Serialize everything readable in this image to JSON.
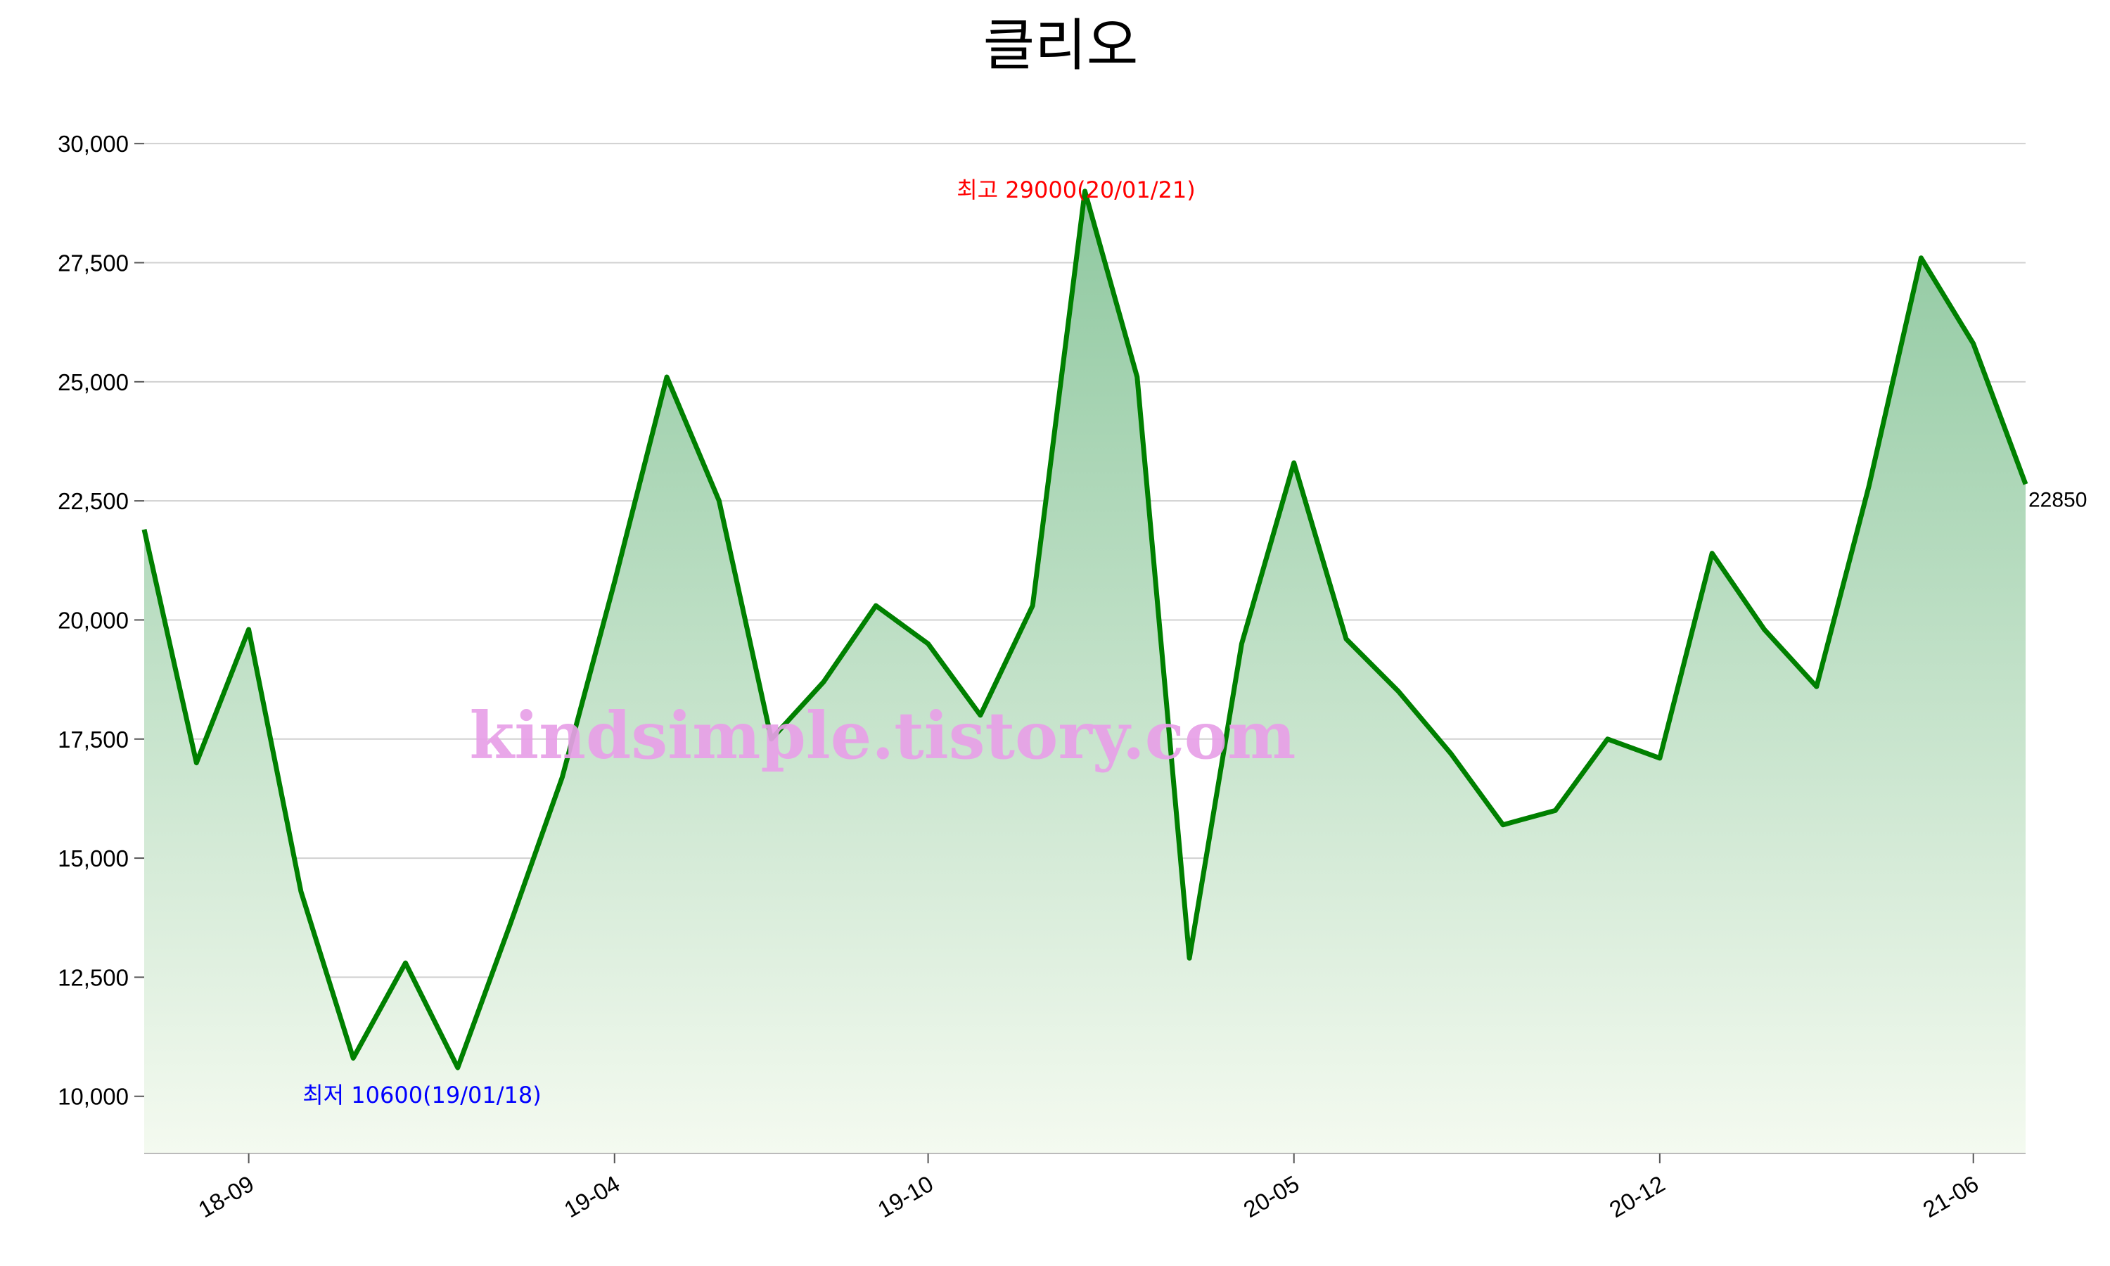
{
  "chart_data": {
    "type": "area",
    "title": "클리오",
    "xlabel": "",
    "ylabel": "",
    "ylim": [
      8800,
      30800
    ],
    "yticks": [
      10000,
      12500,
      15000,
      17500,
      20000,
      22500,
      25000,
      27500,
      30000
    ],
    "ytick_labels": [
      "10,000",
      "12,500",
      "15,000",
      "17,500",
      "20,000",
      "22,500",
      "25,000",
      "27,500",
      "30,000"
    ],
    "xticks": [
      "18-09",
      "19-04",
      "19-10",
      "20-05",
      "20-12",
      "21-06"
    ],
    "grid": "horizontal",
    "colors": {
      "line": "#008000",
      "fill_top": "#8fc8a0",
      "fill_bottom": "#f4faf0",
      "max": "#ff0000",
      "min": "#0000ff"
    },
    "series": [
      {
        "x": [
          "18-07",
          "18-08",
          "18-09",
          "18-10",
          "18-11",
          "18-12",
          "19-01",
          "19-02",
          "19-03",
          "19-04",
          "19-05",
          "19-06",
          "19-07",
          "19-08",
          "19-09",
          "19-10",
          "19-11",
          "19-12",
          "20-01",
          "20-02",
          "20-03",
          "20-04",
          "20-05",
          "20-06",
          "20-07",
          "20-08",
          "20-09",
          "20-10",
          "20-11",
          "20-12",
          "21-01",
          "21-02",
          "21-03",
          "21-04",
          "21-05",
          "21-06",
          "21-07"
        ],
        "values": [
          21900,
          17000,
          19800,
          14300,
          10800,
          12800,
          10600,
          13600,
          16700,
          20800,
          25100,
          22500,
          17500,
          18700,
          20300,
          19500,
          18000,
          20300,
          29000,
          25100,
          12900,
          19500,
          23300,
          19600,
          18500,
          17200,
          15700,
          16000,
          17500,
          17100,
          21400,
          19800,
          18600,
          22800,
          27600,
          25800,
          22850
        ]
      }
    ],
    "annotations": {
      "max_label": "최고 29000(20/01/21)",
      "min_label": "최저 10600(19/01/18)",
      "last_label": "22850"
    },
    "watermark": "kindsimple.tistory.com"
  }
}
